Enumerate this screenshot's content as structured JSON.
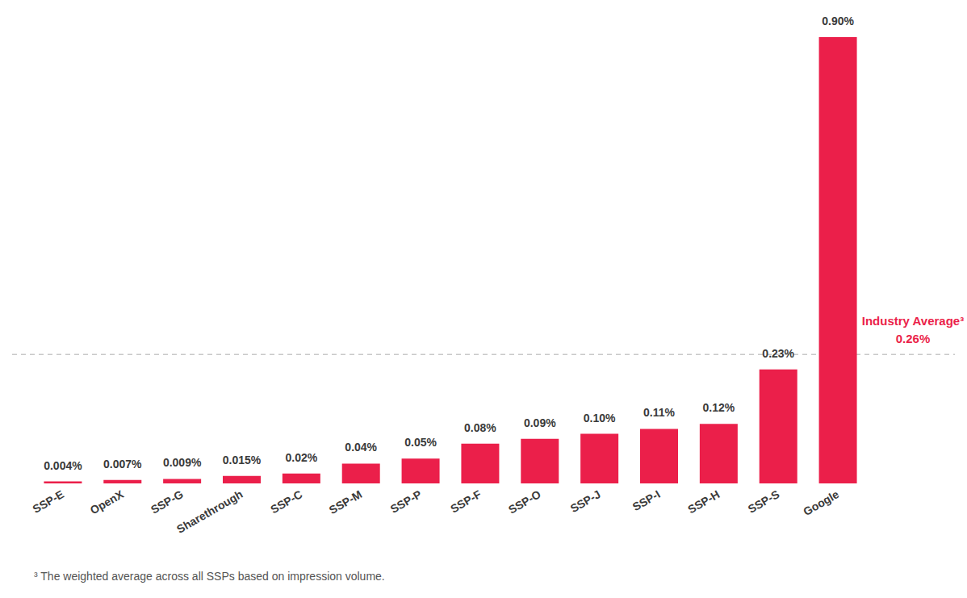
{
  "chart_data": {
    "type": "bar",
    "categories": [
      "SSP-E",
      "OpenX",
      "SSP-G",
      "Sharethrough",
      "SSP-C",
      "SSP-M",
      "SSP-P",
      "SSP-F",
      "SSP-O",
      "SSP-J",
      "SSP-I",
      "SSP-H",
      "SSP-S",
      "Google"
    ],
    "values": [
      0.004,
      0.007,
      0.009,
      0.015,
      0.02,
      0.04,
      0.05,
      0.08,
      0.09,
      0.1,
      0.11,
      0.12,
      0.23,
      0.9
    ],
    "value_labels": [
      "0.004%",
      "0.007%",
      "0.009%",
      "0.015%",
      "0.02%",
      "0.04%",
      "0.05%",
      "0.08%",
      "0.09%",
      "0.10%",
      "0.11%",
      "0.12%",
      "0.23%",
      "0.90%"
    ],
    "color": "#eb1f4a",
    "ylim": [
      0,
      0.9
    ],
    "grid": false,
    "data_labels": true,
    "tick_labels": "x",
    "average": {
      "label": "Industry Average³",
      "value": 0.26,
      "value_label": "0.26%"
    },
    "footnote": "³ The weighted average across all SSPs based on impression volume."
  }
}
